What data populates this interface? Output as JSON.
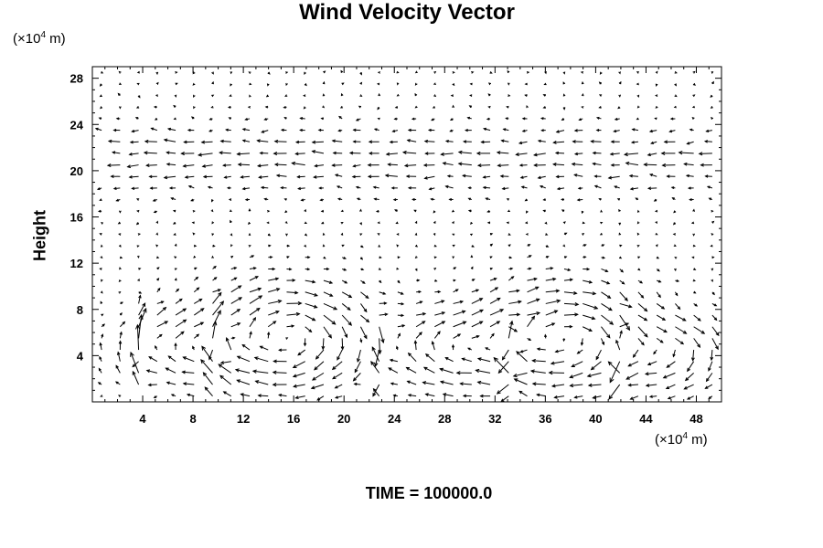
{
  "chart_data": {
    "type": "vector",
    "title": "Wind Velocity Vector",
    "ylabel": "Height",
    "y_unit": {
      "prefix": "(×10",
      "exp": "4",
      "suffix": " m)"
    },
    "x_unit": {
      "prefix": "(×10",
      "exp": "4",
      "suffix": " m)"
    },
    "xlim": [
      0,
      50
    ],
    "ylim": [
      0,
      29
    ],
    "x_ticks": [
      4,
      8,
      12,
      16,
      20,
      24,
      28,
      32,
      36,
      40,
      44,
      48
    ],
    "y_ticks": [
      4,
      8,
      12,
      16,
      20,
      24,
      28
    ],
    "grid": false,
    "field": {
      "nx": 34,
      "ny": 29,
      "description_of_structure": [],
      "cells": [
        {
          "cx": 15.5,
          "cy": 5.5,
          "r": 4.2,
          "dir": -1
        },
        {
          "cx": 28.5,
          "cy": 4.5,
          "r": 3.2,
          "dir": -1
        },
        {
          "cx": 37.5,
          "cy": 5.5,
          "r": 4.2,
          "dir": -1
        },
        {
          "cx": 6.5,
          "cy": 4.5,
          "r": 2.8,
          "dir": -1
        },
        {
          "cx": 46.5,
          "cy": 4.5,
          "r": 2.8,
          "dir": -1
        }
      ],
      "upper_flow_west": 0.8
    }
  },
  "footer": {
    "time_text": "TIME = 100000.0"
  }
}
